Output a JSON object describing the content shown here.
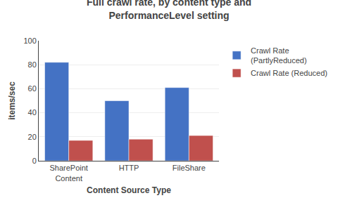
{
  "chart_data": {
    "type": "bar",
    "title": "Full crawl rate, by content type and\nPerformanceLevel setting",
    "xlabel": "Content Source Type",
    "ylabel": "items/sec",
    "categories": [
      "SharePoint\nContent",
      "HTTP",
      "FileShare"
    ],
    "series": [
      {
        "name": "Crawl Rate\n(PartlyReduced)",
        "color": "#4472C4",
        "values": [
          82,
          50,
          61
        ]
      },
      {
        "name": "Crawl Rate (Reduced)",
        "color": "#C0504D",
        "values": [
          17,
          18,
          21
        ]
      }
    ],
    "ylim": [
      0,
      100
    ],
    "yticks": [
      0,
      20,
      40,
      60,
      80,
      100
    ],
    "grid": true,
    "legend": "right"
  }
}
